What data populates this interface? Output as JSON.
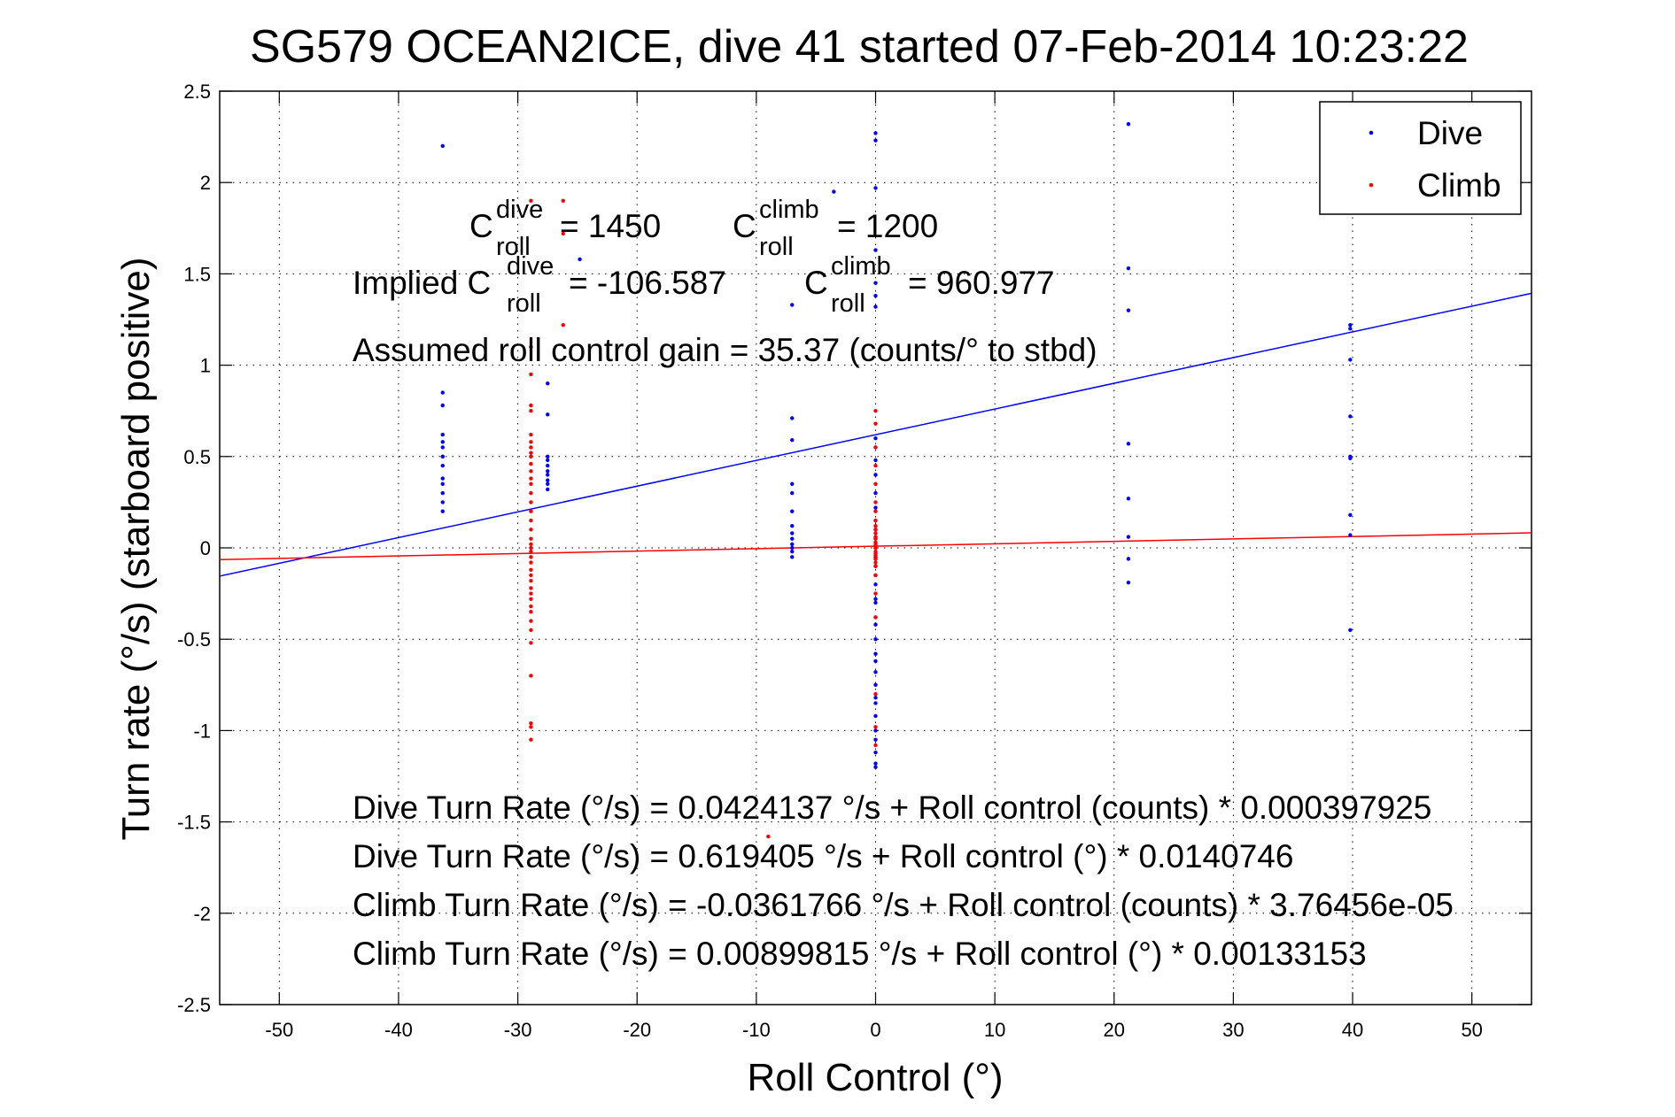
{
  "chart_data": {
    "type": "scatter",
    "title": "SG579 OCEAN2ICE, dive 41 started 07-Feb-2014 10:23:22",
    "xlabel": "Roll Control (°)",
    "ylabel": "Turn rate (°/s)  (starboard positive)",
    "xlim": [
      -55,
      55
    ],
    "ylim": [
      -2.5,
      2.5
    ],
    "x_ticks": [
      "-50",
      "-40",
      "-30",
      "-20",
      "-10",
      "0",
      "10",
      "20",
      "30",
      "40",
      "50"
    ],
    "y_ticks": [
      "2.5",
      "2",
      "1.5",
      "1",
      "0.5",
      "0",
      "-0.5",
      "-1",
      "-1.5",
      "-2",
      "-2.5"
    ],
    "grid": "dotted",
    "legend_position": "top-right",
    "series": [
      {
        "name": "Dive",
        "color": "#0000ff",
        "marker": "dot",
        "x": [
          -36.3,
          -36.3,
          -36.3,
          -36.3,
          -36.3,
          -36.3,
          -36.3,
          -36.3,
          -36.3,
          -36.3,
          -36.3,
          -36.3,
          -36.3,
          -36.3,
          -27.5,
          -27.5,
          -27.5,
          -27.5,
          -27.5,
          -27.5,
          -27.5,
          -27.5,
          -27.5,
          -27.5,
          -24.8,
          -7,
          -7,
          -7,
          -7,
          -7,
          -7,
          -7,
          -7,
          -7,
          -7,
          -7,
          -7,
          -7,
          -3.5,
          0,
          0,
          0,
          0,
          0,
          0,
          0,
          0,
          0,
          0,
          0,
          0,
          0,
          0,
          0,
          0,
          0,
          0,
          0,
          0,
          0,
          0,
          0,
          0,
          0,
          0,
          0,
          0,
          0,
          0,
          0,
          0,
          0,
          0,
          0,
          0,
          0,
          0,
          21.2,
          21.2,
          21.2,
          21.2,
          21.2,
          21.2,
          21.2,
          21.2,
          39.8,
          39.8,
          39.8,
          39.8,
          39.8,
          39.8,
          39.8,
          39.8,
          39.8
        ],
        "y": [
          2.2,
          0.85,
          0.78,
          0.62,
          0.58,
          0.55,
          0.5,
          0.45,
          0.38,
          0.35,
          0.3,
          0.25,
          0.2,
          0.5,
          0.9,
          0.73,
          0.5,
          0.48,
          0.45,
          0.42,
          0.4,
          0.37,
          0.35,
          0.32,
          1.58,
          1.33,
          0.71,
          0.59,
          0.35,
          0.3,
          0.2,
          0.12,
          0.08,
          0.05,
          0.02,
          0,
          -0.02,
          -0.05,
          1.95,
          2.27,
          2.23,
          1.97,
          1.63,
          1.45,
          1.38,
          1.32,
          0.6,
          0.55,
          0.48,
          0.4,
          0.3,
          0.22,
          0.15,
          0.1,
          0.05,
          0,
          -0.05,
          -0.1,
          -0.15,
          -0.2,
          -0.3,
          -0.38,
          -0.42,
          -0.5,
          -0.58,
          -0.62,
          -0.68,
          -0.75,
          -0.82,
          -0.92,
          -1,
          -1.05,
          -1.12,
          -1.18,
          -1.2,
          -0.85,
          -0.28,
          2.32,
          1.53,
          1.3,
          0.57,
          0.27,
          0.06,
          -0.06,
          -0.19,
          1.22,
          1.2,
          1.03,
          0.72,
          0.5,
          0.49,
          0.18,
          0.07,
          -0.45
        ]
      },
      {
        "name": "Climb",
        "color": "#ff0000",
        "marker": "dot",
        "x": [
          -28.9,
          -28.9,
          -28.9,
          -28.9,
          -28.9,
          -28.9,
          -28.9,
          -28.9,
          -28.9,
          -28.9,
          -28.9,
          -28.9,
          -28.9,
          -28.9,
          -28.9,
          -28.9,
          -28.9,
          -28.9,
          -28.9,
          -28.9,
          -28.9,
          -28.9,
          -28.9,
          -28.9,
          -28.9,
          -28.9,
          -28.9,
          -28.9,
          -28.9,
          -28.9,
          -28.9,
          -28.9,
          -28.9,
          -28.9,
          -28.9,
          -28.9,
          -28.9,
          -28.9,
          -28.9,
          -28.9,
          -26.2,
          -26.2,
          -26.2,
          -26,
          0,
          0,
          0,
          0,
          0,
          0,
          0,
          0,
          0,
          0,
          0,
          0,
          0,
          0,
          0,
          0,
          0,
          0,
          0,
          0,
          0,
          0,
          0,
          0,
          0,
          0,
          0,
          0,
          0,
          0,
          -9
        ],
        "y": [
          1.9,
          1.1,
          0.95,
          0.78,
          0.75,
          0.62,
          0.58,
          0.55,
          0.52,
          0.5,
          0.46,
          0.42,
          0.38,
          0.35,
          0.3,
          0.25,
          0.2,
          0.15,
          0.1,
          0.05,
          0.02,
          0,
          -0.02,
          -0.05,
          -0.08,
          -0.12,
          -0.15,
          -0.18,
          -0.22,
          -0.25,
          -0.28,
          -0.32,
          -0.35,
          -0.4,
          -0.45,
          -0.52,
          -0.7,
          -0.96,
          -0.98,
          -1.05,
          1.9,
          1.72,
          1.22,
          -1.95,
          0.75,
          0.68,
          0.55,
          0.45,
          0.35,
          0.25,
          0.2,
          0.15,
          0.12,
          0.1,
          0.08,
          0.05,
          0.03,
          0.01,
          0,
          -0.02,
          -0.04,
          -0.06,
          -0.08,
          -0.1,
          -0.15,
          -0.25,
          -0.38,
          -0.8,
          -0.98,
          -1.08,
          -0.06,
          -0.03,
          0.02,
          0.06,
          -1.58
        ]
      }
    ],
    "fit_lines": [
      {
        "name": "Dive fit",
        "color": "#0000ff",
        "intercept": 0.619405,
        "slope": 0.0140746
      },
      {
        "name": "Climb fit",
        "color": "#ff0000",
        "intercept": 0.00899815,
        "slope": 0.00133153
      }
    ],
    "annotations": {
      "c_dive": {
        "base": "C",
        "sup": "dive",
        "sub": "roll",
        "value": "= 1450"
      },
      "c_climb": {
        "base": "C",
        "sup": "climb",
        "sub": "roll",
        "value": "= 1200"
      },
      "implied_prefix": "Implied C",
      "implied_dive": {
        "sup": "dive",
        "sub": "roll",
        "value": "= -106.587"
      },
      "implied_climb": {
        "base": "C",
        "sup": "climb",
        "sub": "roll",
        "value": "= 960.977"
      },
      "gain": "Assumed roll control gain = 35.37 (counts/° to stbd)",
      "eq1": "Dive Turn Rate (°/s) = 0.0424137 °/s + Roll control (counts) * 0.000397925",
      "eq2": "Dive Turn Rate (°/s) = 0.619405 °/s + Roll control (°) * 0.0140746",
      "eq3": "Climb Turn Rate (°/s) = -0.0361766 °/s + Roll control (counts) * 3.76456e-05",
      "eq4": "Climb Turn Rate (°/s) = 0.00899815 °/s + Roll control (°) * 0.00133153"
    }
  }
}
